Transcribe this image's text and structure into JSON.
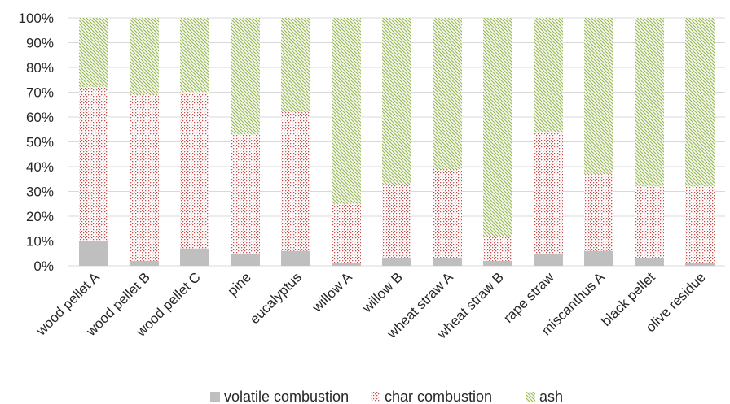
{
  "chart_data": {
    "type": "bar",
    "stacked": true,
    "percent_stacked": true,
    "categories": [
      "wood pellet A",
      "wood pellet B",
      "wood pellet C",
      "pine",
      "eucalyptus",
      "willow A",
      "willow B",
      "wheat straw A",
      "wheat straw B",
      "rape straw",
      "miscanthus A",
      "black pellet",
      "olive residue"
    ],
    "series": [
      {
        "name": "volatile combustion",
        "values": [
          10,
          2,
          7,
          5,
          6,
          1,
          3,
          3,
          2,
          5,
          6,
          3,
          1
        ],
        "color": "#bfbfbf",
        "pattern": "solid"
      },
      {
        "name": "char combustion",
        "values": [
          62,
          67,
          63,
          48,
          56,
          24,
          30,
          36,
          10,
          49,
          31,
          29,
          31
        ],
        "color": "#c0504d",
        "pattern": "dots"
      },
      {
        "name": "ash",
        "values": [
          28,
          31,
          30,
          47,
          38,
          75,
          67,
          61,
          88,
          46,
          63,
          68,
          68
        ],
        "color": "#9bbb59",
        "pattern": "diagonal"
      }
    ],
    "ylim": [
      0,
      100
    ],
    "yticks": [
      "0%",
      "10%",
      "20%",
      "30%",
      "40%",
      "50%",
      "60%",
      "70%",
      "80%",
      "90%",
      "100%"
    ],
    "grid": true,
    "legend_position": "bottom",
    "title": "",
    "xlabel": "",
    "ylabel": ""
  }
}
